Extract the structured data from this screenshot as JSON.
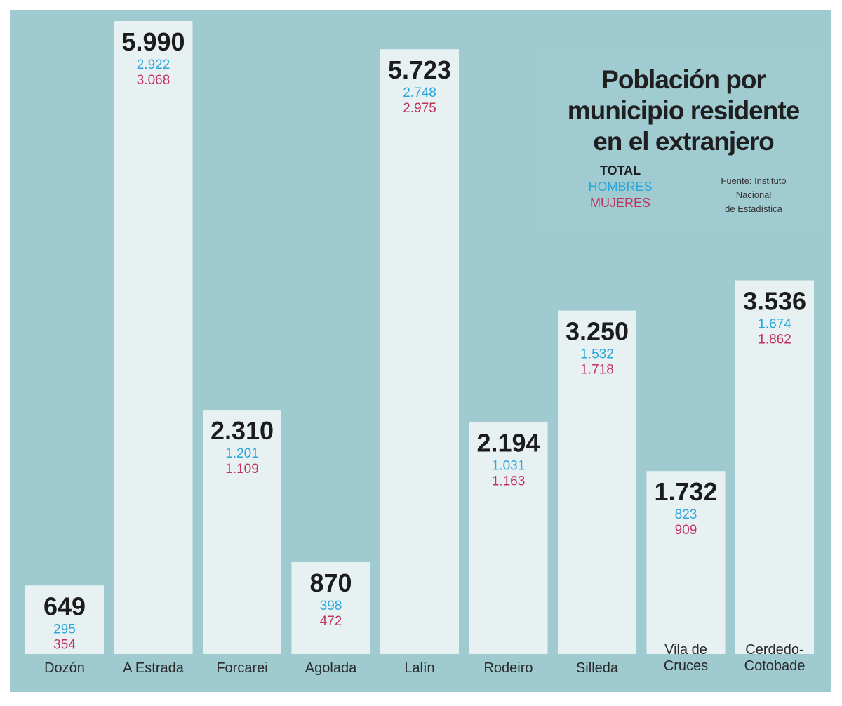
{
  "colors": {
    "background": "#9fcbd0",
    "bar": "#eef3f4",
    "total": "#1c1c1c",
    "men": "#2aa6dc",
    "women": "#c2325f"
  },
  "legend": {
    "total": "TOTAL",
    "men": "HOMBRES",
    "women": "MUJERES"
  },
  "source": {
    "line1": "Fuente: Instituto",
    "line2": "Nacional",
    "line3": "de Estadística"
  },
  "chart_data": {
    "type": "bar",
    "title": "Población por municipio residente en el extranjero",
    "title_lines": [
      "Población por",
      "municipio residente",
      "en el extranjero"
    ],
    "categories": [
      "Dozón",
      "A Estrada",
      "Forcarei",
      "Agolada",
      "Lalín",
      "Rodeiro",
      "Silleda",
      "Vila de Cruces",
      "Cerdedo-Cotobade"
    ],
    "category_lines": [
      [
        "Dozón"
      ],
      [
        "A Estrada"
      ],
      [
        "Forcarei"
      ],
      [
        "Agolada"
      ],
      [
        "Lalín"
      ],
      [
        "Rodeiro"
      ],
      [
        "Silleda"
      ],
      [
        "Vila de",
        "Cruces"
      ],
      [
        "Cerdedo-",
        "Cotobade"
      ]
    ],
    "series": [
      {
        "name": "TOTAL",
        "values": [
          649,
          5990,
          2310,
          870,
          5723,
          2194,
          3250,
          1732,
          3536
        ],
        "labels": [
          "649",
          "5.990",
          "2.310",
          "870",
          "5.723",
          "2.194",
          "3.250",
          "1.732",
          "3.536"
        ]
      },
      {
        "name": "HOMBRES",
        "values": [
          295,
          2922,
          1201,
          398,
          2748,
          1031,
          1532,
          823,
          1674
        ],
        "labels": [
          "295",
          "2.922",
          "1.201",
          "398",
          "2.748",
          "1.031",
          "1.532",
          "823",
          "1.674"
        ]
      },
      {
        "name": "MUJERES",
        "values": [
          354,
          3068,
          1109,
          472,
          2975,
          1163,
          1718,
          909,
          1862
        ],
        "labels": [
          "354",
          "3.068",
          "1.109",
          "472",
          "2.975",
          "1.163",
          "1.718",
          "909",
          "1.862"
        ]
      }
    ],
    "ylim": [
      0,
      6000
    ],
    "xlabel": "",
    "ylabel": "",
    "grid": false,
    "legend": "top-right"
  }
}
